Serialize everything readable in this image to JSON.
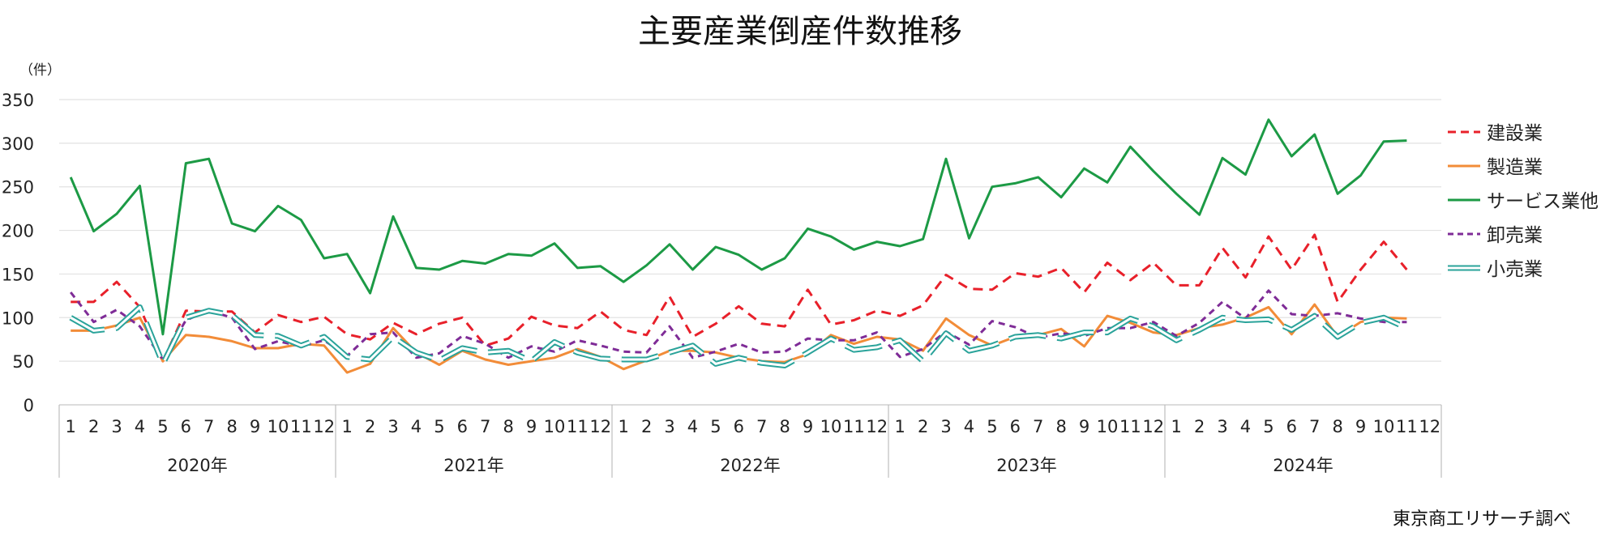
{
  "chart_data": {
    "type": "line",
    "title": "主要産業倒産件数推移",
    "unit_label": "（件）",
    "ylabel": "件",
    "ylim": [
      0,
      350
    ],
    "yticks": [
      0,
      50,
      100,
      150,
      200,
      250,
      300,
      350
    ],
    "grid": true,
    "legend_position": "right",
    "source": "東京商工リサーチ調べ",
    "years": [
      "2020年",
      "2021年",
      "2022年",
      "2023年",
      "2024年"
    ],
    "months": [
      "1",
      "2",
      "3",
      "4",
      "5",
      "6",
      "7",
      "8",
      "9",
      "10",
      "11",
      "12"
    ],
    "series": [
      {
        "name": "建設業",
        "color": "#e8202a",
        "style": "dashed",
        "values": [
          118,
          118,
          141,
          112,
          50,
          108,
          107,
          107,
          83,
          103,
          95,
          101,
          81,
          75,
          94,
          81,
          93,
          100,
          68,
          76,
          101,
          91,
          88,
          107,
          86,
          80,
          124,
          78,
          93,
          113,
          93,
          90,
          132,
          92,
          97,
          108,
          102,
          114,
          149,
          133,
          132,
          151,
          147,
          157,
          129,
          163,
          143,
          163,
          137,
          137,
          180,
          146,
          193,
          155,
          195,
          118,
          155,
          187,
          155,
          null
        ]
      },
      {
        "name": "製造業",
        "color": "#f28c38",
        "style": "solid",
        "values": [
          85,
          85,
          91,
          100,
          50,
          80,
          78,
          73,
          65,
          65,
          70,
          68,
          37,
          47,
          88,
          60,
          46,
          62,
          52,
          46,
          50,
          54,
          64,
          55,
          41,
          51,
          62,
          62,
          60,
          54,
          50,
          49,
          58,
          80,
          70,
          78,
          75,
          62,
          99,
          80,
          68,
          78,
          80,
          87,
          67,
          102,
          94,
          83,
          80,
          88,
          92,
          100,
          112,
          81,
          115,
          78,
          95,
          100,
          99,
          null
        ]
      },
      {
        "name": "サービス業他",
        "color": "#1c9a45",
        "style": "solid",
        "values": [
          261,
          199,
          219,
          251,
          81,
          277,
          282,
          208,
          199,
          228,
          212,
          168,
          173,
          128,
          216,
          157,
          155,
          165,
          162,
          173,
          171,
          185,
          157,
          159,
          141,
          160,
          184,
          155,
          181,
          172,
          155,
          168,
          202,
          193,
          178,
          187,
          182,
          190,
          282,
          191,
          250,
          254,
          261,
          238,
          271,
          255,
          296,
          268,
          242,
          218,
          283,
          264,
          327,
          285,
          310,
          242,
          263,
          302,
          303,
          null
        ]
      },
      {
        "name": "卸売業",
        "color": "#7f2c97",
        "style": "dashed",
        "values": [
          129,
          95,
          109,
          90,
          52,
          97,
          108,
          100,
          64,
          73,
          67,
          74,
          56,
          81,
          83,
          54,
          59,
          79,
          70,
          54,
          67,
          61,
          74,
          68,
          61,
          60,
          90,
          54,
          61,
          70,
          60,
          61,
          76,
          74,
          74,
          83,
          55,
          64,
          84,
          69,
          96,
          89,
          77,
          82,
          79,
          88,
          88,
          95,
          79,
          94,
          118,
          99,
          131,
          104,
          102,
          105,
          99,
          95,
          95,
          null
        ]
      },
      {
        "name": "小売業",
        "color": "#2aa39a",
        "style": "double",
        "values": [
          100,
          85,
          88,
          112,
          47,
          100,
          108,
          103,
          80,
          79,
          68,
          78,
          55,
          52,
          78,
          60,
          51,
          65,
          60,
          62,
          50,
          72,
          60,
          53,
          52,
          52,
          60,
          68,
          47,
          54,
          48,
          45,
          60,
          76,
          63,
          66,
          74,
          50,
          82,
          62,
          68,
          78,
          80,
          76,
          83,
          83,
          99,
          90,
          74,
          86,
          100,
          97,
          98,
          86,
          102,
          78,
          94,
          100,
          88,
          null
        ]
      }
    ]
  }
}
